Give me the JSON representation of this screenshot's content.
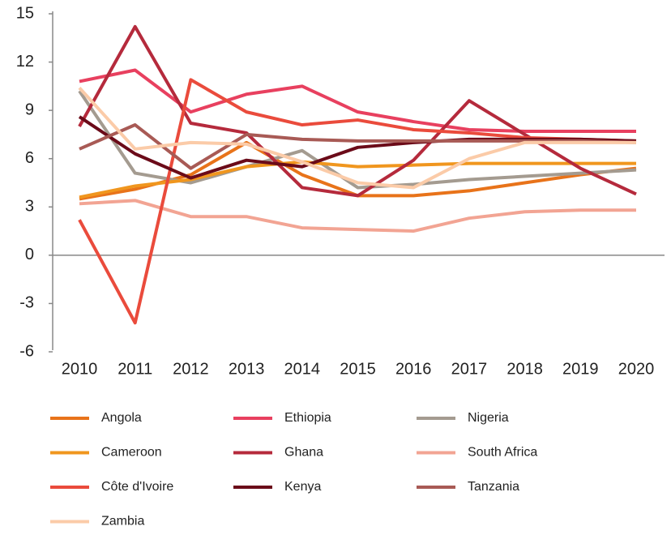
{
  "chart_data": {
    "type": "line",
    "categories": [
      "2010",
      "2011",
      "2012",
      "2013",
      "2014",
      "2015",
      "2016",
      "2017",
      "2018",
      "2019",
      "2020"
    ],
    "ylim": [
      -6,
      15
    ],
    "yticks": [
      -6,
      -3,
      0,
      3,
      6,
      9,
      12,
      15
    ],
    "series": [
      {
        "name": "Angola",
        "color": "#e8731a",
        "values": [
          3.5,
          4.1,
          5.0,
          7.0,
          5.0,
          3.7,
          3.7,
          4.0,
          4.5,
          5.0,
          5.4
        ]
      },
      {
        "name": "Ethiopia",
        "color": "#e8405f",
        "values": [
          10.8,
          11.5,
          8.9,
          10.0,
          10.5,
          8.9,
          8.3,
          7.8,
          7.7,
          7.7,
          7.7
        ]
      },
      {
        "name": "Nigeria",
        "color": "#a49b90",
        "values": [
          10.2,
          5.1,
          4.5,
          5.5,
          6.5,
          4.2,
          4.4,
          4.7,
          4.9,
          5.1,
          5.3
        ]
      },
      {
        "name": "Cameroon",
        "color": "#f0961e",
        "values": [
          3.6,
          4.3,
          4.7,
          5.5,
          5.8,
          5.5,
          5.6,
          5.7,
          5.7,
          5.7,
          5.7
        ]
      },
      {
        "name": "Ghana",
        "color": "#b52a3c",
        "values": [
          8.0,
          14.2,
          8.2,
          7.6,
          4.2,
          3.7,
          5.9,
          9.6,
          7.5,
          5.4,
          3.8
        ]
      },
      {
        "name": "South Africa",
        "color": "#f2a493",
        "values": [
          3.2,
          3.4,
          2.4,
          2.4,
          1.7,
          1.6,
          1.5,
          2.3,
          2.7,
          2.8,
          2.8
        ]
      },
      {
        "name": "Côte d'Ivoire",
        "color": "#ea4b3c",
        "values": [
          2.2,
          -4.2,
          10.9,
          8.9,
          8.1,
          8.4,
          7.8,
          7.6,
          7.3,
          7.2,
          7.1
        ]
      },
      {
        "name": "Kenya",
        "color": "#6b0b19",
        "values": [
          8.6,
          6.3,
          4.8,
          5.9,
          5.5,
          6.7,
          7.0,
          7.2,
          7.2,
          7.2,
          7.1
        ]
      },
      {
        "name": "Tanzania",
        "color": "#a85a55",
        "values": [
          6.6,
          8.1,
          5.4,
          7.5,
          7.2,
          7.1,
          7.1,
          7.1,
          7.1,
          7.1,
          7.0
        ]
      },
      {
        "name": "Zambia",
        "color": "#fbcba8",
        "values": [
          10.4,
          6.6,
          7.0,
          6.9,
          5.8,
          4.5,
          4.2,
          6.0,
          7.0,
          7.0,
          7.0
        ]
      }
    ]
  }
}
